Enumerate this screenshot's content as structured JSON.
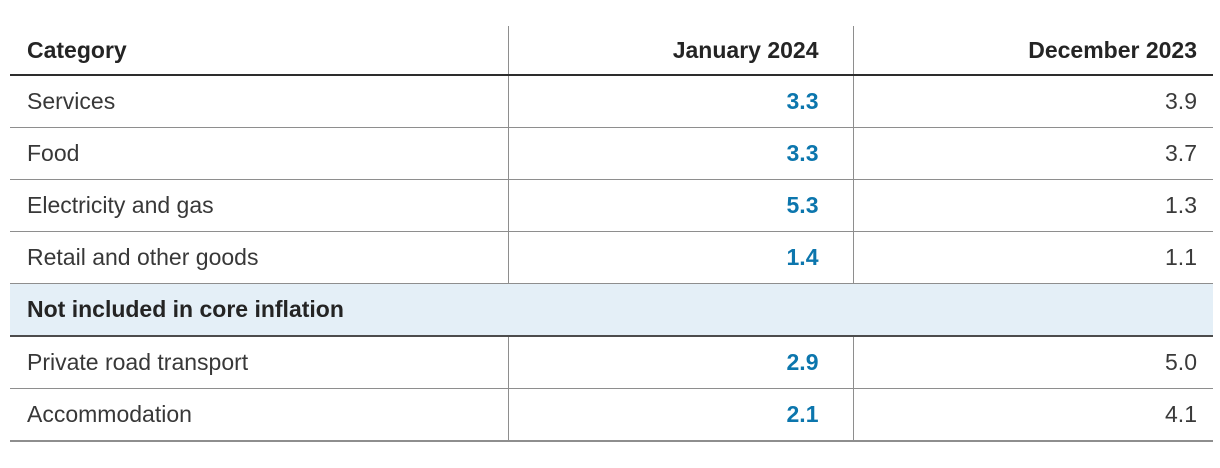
{
  "table": {
    "columns": [
      "Category",
      "January 2024",
      "December 2023"
    ],
    "rows": [
      {
        "category": "Services",
        "january_2024": "3.3",
        "december_2023": "3.9"
      },
      {
        "category": "Food",
        "january_2024": "3.3",
        "december_2023": "3.7"
      },
      {
        "category": "Electricity and gas",
        "january_2024": "5.3",
        "december_2023": "1.3"
      },
      {
        "category": "Retail and other goods",
        "january_2024": "1.4",
        "december_2023": "1.1"
      },
      {
        "category": "Private road transport",
        "january_2024": "2.9",
        "december_2023": "5.0"
      },
      {
        "category": "Accommodation",
        "january_2024": "2.1",
        "december_2023": "4.1"
      }
    ],
    "section_header": "Not included in core inflation"
  },
  "colors": {
    "january_value_blue": "#0c76ad",
    "section_background": "#e4eff7",
    "header_rule": "#2d2d2d",
    "row_rule": "#8e8e8e",
    "body_text": "#383838"
  },
  "chart_data": {
    "type": "table",
    "title": "",
    "columns": [
      "Category",
      "January 2024",
      "December 2023"
    ],
    "categories": [
      "Services",
      "Food",
      "Electricity and gas",
      "Retail and other goods",
      "Private road transport",
      "Accommodation"
    ],
    "series": [
      {
        "name": "January 2024",
        "values": [
          3.3,
          3.3,
          5.3,
          1.4,
          2.9,
          2.1
        ]
      },
      {
        "name": "December 2023",
        "values": [
          3.9,
          3.7,
          1.3,
          1.1,
          5.0,
          4.1
        ]
      }
    ],
    "section_header": {
      "label": "Not included in core inflation",
      "applies_to": [
        "Private road transport",
        "Accommodation"
      ]
    },
    "layout": {
      "grid": "horizontal row rules",
      "january_values_highlighted": true
    }
  }
}
